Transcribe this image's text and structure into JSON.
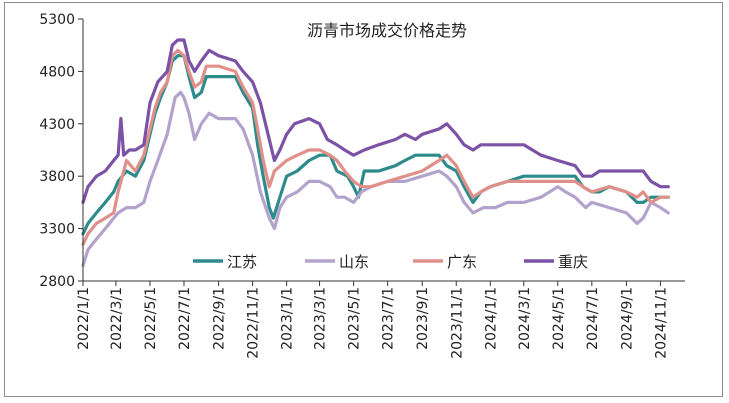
{
  "chart_data": {
    "type": "line",
    "title": "沥青市场成交价格走势",
    "xlabel": "",
    "ylabel": "",
    "ylim": [
      2800,
      5300
    ],
    "yticks": [
      2800,
      3300,
      3800,
      4300,
      4800,
      5300
    ],
    "ytick_labels": [
      "2800",
      "3300",
      "3800",
      "4300",
      "4800",
      "5300"
    ],
    "xlim": [
      "2022-01-01",
      "2024-12-15"
    ],
    "xticks": [
      "2022-01-01",
      "2022-03-01",
      "2022-05-01",
      "2022-07-01",
      "2022-09-01",
      "2022-11-01",
      "2023-01-01",
      "2023-03-01",
      "2023-05-01",
      "2023-07-01",
      "2023-09-01",
      "2023-11-01",
      "2024-01-01",
      "2024-03-01",
      "2024-05-01",
      "2024-07-01",
      "2024-09-01",
      "2024-11-01"
    ],
    "xtick_labels": [
      "2022/1/1",
      "2022/3/1",
      "2022/5/1",
      "2022/7/1",
      "2022/9/1",
      "2022/11/1",
      "2023/1/1",
      "2023/3/1",
      "2023/5/1",
      "2023/7/1",
      "2023/9/1",
      "2023/11/1",
      "2024/1/1",
      "2024/3/1",
      "2024/5/1",
      "2024/7/1",
      "2024/9/1",
      "2024/11/1"
    ],
    "grid": false,
    "legend_position": "bottom-inside",
    "series": [
      {
        "name": "江苏",
        "color": "#2e8b8b",
        "points": [
          [
            "2022-01-01",
            3250
          ],
          [
            "2022-01-10",
            3350
          ],
          [
            "2022-01-25",
            3450
          ],
          [
            "2022-02-10",
            3550
          ],
          [
            "2022-02-25",
            3650
          ],
          [
            "2022-03-05",
            3750
          ],
          [
            "2022-03-20",
            3850
          ],
          [
            "2022-04-05",
            3800
          ],
          [
            "2022-04-20",
            3950
          ],
          [
            "2022-05-01",
            4200
          ],
          [
            "2022-05-10",
            4400
          ],
          [
            "2022-05-20",
            4550
          ],
          [
            "2022-06-01",
            4700
          ],
          [
            "2022-06-10",
            4900
          ],
          [
            "2022-06-20",
            4950
          ],
          [
            "2022-07-01",
            4950
          ],
          [
            "2022-07-10",
            4750
          ],
          [
            "2022-07-20",
            4550
          ],
          [
            "2022-08-01",
            4600
          ],
          [
            "2022-08-10",
            4750
          ],
          [
            "2022-09-01",
            4750
          ],
          [
            "2022-10-01",
            4750
          ],
          [
            "2022-10-15",
            4600
          ],
          [
            "2022-11-01",
            4450
          ],
          [
            "2022-11-10",
            4100
          ],
          [
            "2022-11-20",
            3800
          ],
          [
            "2022-12-01",
            3500
          ],
          [
            "2022-12-08",
            3400
          ],
          [
            "2022-12-20",
            3600
          ],
          [
            "2023-01-01",
            3800
          ],
          [
            "2023-01-20",
            3850
          ],
          [
            "2023-02-10",
            3950
          ],
          [
            "2023-03-01",
            4000
          ],
          [
            "2023-03-20",
            4000
          ],
          [
            "2023-04-01",
            3850
          ],
          [
            "2023-04-20",
            3800
          ],
          [
            "2023-05-01",
            3700
          ],
          [
            "2023-05-10",
            3600
          ],
          [
            "2023-05-20",
            3850
          ],
          [
            "2023-06-15",
            3850
          ],
          [
            "2023-07-15",
            3900
          ],
          [
            "2023-08-01",
            3950
          ],
          [
            "2023-08-20",
            4000
          ],
          [
            "2023-10-01",
            4000
          ],
          [
            "2023-10-15",
            3900
          ],
          [
            "2023-11-01",
            3850
          ],
          [
            "2023-11-15",
            3700
          ],
          [
            "2023-12-01",
            3550
          ],
          [
            "2023-12-15",
            3650
          ],
          [
            "2024-01-01",
            3700
          ],
          [
            "2024-02-01",
            3750
          ],
          [
            "2024-03-01",
            3800
          ],
          [
            "2024-05-01",
            3800
          ],
          [
            "2024-06-01",
            3800
          ],
          [
            "2024-06-15",
            3700
          ],
          [
            "2024-07-01",
            3650
          ],
          [
            "2024-07-15",
            3650
          ],
          [
            "2024-08-01",
            3700
          ],
          [
            "2024-09-01",
            3650
          ],
          [
            "2024-09-20",
            3550
          ],
          [
            "2024-10-01",
            3550
          ],
          [
            "2024-10-15",
            3600
          ],
          [
            "2024-11-01",
            3600
          ],
          [
            "2024-11-15",
            3600
          ]
        ]
      },
      {
        "name": "山东",
        "color": "#b3a3cc",
        "points": [
          [
            "2022-01-01",
            2950
          ],
          [
            "2022-01-10",
            3100
          ],
          [
            "2022-01-25",
            3200
          ],
          [
            "2022-02-10",
            3300
          ],
          [
            "2022-02-25",
            3400
          ],
          [
            "2022-03-05",
            3450
          ],
          [
            "2022-03-20",
            3500
          ],
          [
            "2022-04-05",
            3500
          ],
          [
            "2022-04-20",
            3550
          ],
          [
            "2022-05-01",
            3750
          ],
          [
            "2022-05-15",
            3950
          ],
          [
            "2022-06-01",
            4200
          ],
          [
            "2022-06-15",
            4550
          ],
          [
            "2022-06-25",
            4600
          ],
          [
            "2022-07-01",
            4550
          ],
          [
            "2022-07-10",
            4400
          ],
          [
            "2022-07-20",
            4150
          ],
          [
            "2022-08-01",
            4300
          ],
          [
            "2022-08-15",
            4400
          ],
          [
            "2022-09-01",
            4350
          ],
          [
            "2022-10-01",
            4350
          ],
          [
            "2022-10-15",
            4250
          ],
          [
            "2022-11-01",
            4000
          ],
          [
            "2022-11-15",
            3650
          ],
          [
            "2022-12-01",
            3400
          ],
          [
            "2022-12-10",
            3300
          ],
          [
            "2022-12-20",
            3500
          ],
          [
            "2023-01-01",
            3600
          ],
          [
            "2023-01-20",
            3650
          ],
          [
            "2023-02-10",
            3750
          ],
          [
            "2023-03-01",
            3750
          ],
          [
            "2023-03-20",
            3700
          ],
          [
            "2023-04-01",
            3600
          ],
          [
            "2023-04-15",
            3600
          ],
          [
            "2023-05-01",
            3550
          ],
          [
            "2023-05-15",
            3650
          ],
          [
            "2023-06-01",
            3700
          ],
          [
            "2023-07-01",
            3750
          ],
          [
            "2023-08-01",
            3750
          ],
          [
            "2023-09-01",
            3800
          ],
          [
            "2023-10-01",
            3850
          ],
          [
            "2023-10-15",
            3800
          ],
          [
            "2023-11-01",
            3700
          ],
          [
            "2023-11-15",
            3550
          ],
          [
            "2023-12-01",
            3450
          ],
          [
            "2023-12-20",
            3500
          ],
          [
            "2024-01-10",
            3500
          ],
          [
            "2024-02-01",
            3550
          ],
          [
            "2024-03-01",
            3550
          ],
          [
            "2024-04-01",
            3600
          ],
          [
            "2024-05-01",
            3700
          ],
          [
            "2024-05-15",
            3650
          ],
          [
            "2024-06-01",
            3600
          ],
          [
            "2024-06-20",
            3500
          ],
          [
            "2024-07-01",
            3550
          ],
          [
            "2024-08-01",
            3500
          ],
          [
            "2024-09-01",
            3450
          ],
          [
            "2024-09-20",
            3350
          ],
          [
            "2024-10-01",
            3400
          ],
          [
            "2024-10-15",
            3550
          ],
          [
            "2024-11-01",
            3500
          ],
          [
            "2024-11-15",
            3450
          ]
        ]
      },
      {
        "name": "广东",
        "color": "#e0908a",
        "points": [
          [
            "2022-01-01",
            3150
          ],
          [
            "2022-01-10",
            3250
          ],
          [
            "2022-01-25",
            3350
          ],
          [
            "2022-02-10",
            3400
          ],
          [
            "2022-02-25",
            3450
          ],
          [
            "2022-03-05",
            3650
          ],
          [
            "2022-03-20",
            3950
          ],
          [
            "2022-04-05",
            3850
          ],
          [
            "2022-04-20",
            4000
          ],
          [
            "2022-05-01",
            4250
          ],
          [
            "2022-05-10",
            4450
          ],
          [
            "2022-05-20",
            4600
          ],
          [
            "2022-06-01",
            4700
          ],
          [
            "2022-06-10",
            4950
          ],
          [
            "2022-06-20",
            5000
          ],
          [
            "2022-07-01",
            4950
          ],
          [
            "2022-07-10",
            4800
          ],
          [
            "2022-07-20",
            4650
          ],
          [
            "2022-08-01",
            4700
          ],
          [
            "2022-08-10",
            4850
          ],
          [
            "2022-09-01",
            4850
          ],
          [
            "2022-10-01",
            4800
          ],
          [
            "2022-10-15",
            4650
          ],
          [
            "2022-11-01",
            4500
          ],
          [
            "2022-11-10",
            4250
          ],
          [
            "2022-11-20",
            3950
          ],
          [
            "2022-12-01",
            3700
          ],
          [
            "2022-12-10",
            3850
          ],
          [
            "2023-01-01",
            3950
          ],
          [
            "2023-01-20",
            4000
          ],
          [
            "2023-02-10",
            4050
          ],
          [
            "2023-03-01",
            4050
          ],
          [
            "2023-03-20",
            4000
          ],
          [
            "2023-04-01",
            3950
          ],
          [
            "2023-04-15",
            3850
          ],
          [
            "2023-05-01",
            3750
          ],
          [
            "2023-05-15",
            3700
          ],
          [
            "2023-06-01",
            3700
          ],
          [
            "2023-07-01",
            3750
          ],
          [
            "2023-08-01",
            3800
          ],
          [
            "2023-09-01",
            3850
          ],
          [
            "2023-10-01",
            3950
          ],
          [
            "2023-10-15",
            4000
          ],
          [
            "2023-11-01",
            3900
          ],
          [
            "2023-11-15",
            3750
          ],
          [
            "2023-12-01",
            3600
          ],
          [
            "2023-12-15",
            3650
          ],
          [
            "2024-01-01",
            3700
          ],
          [
            "2024-02-01",
            3750
          ],
          [
            "2024-03-01",
            3750
          ],
          [
            "2024-04-01",
            3750
          ],
          [
            "2024-05-01",
            3750
          ],
          [
            "2024-06-01",
            3750
          ],
          [
            "2024-06-15",
            3700
          ],
          [
            "2024-07-01",
            3650
          ],
          [
            "2024-08-01",
            3700
          ],
          [
            "2024-09-01",
            3650
          ],
          [
            "2024-09-20",
            3600
          ],
          [
            "2024-10-01",
            3650
          ],
          [
            "2024-10-15",
            3550
          ],
          [
            "2024-11-01",
            3600
          ],
          [
            "2024-11-15",
            3600
          ]
        ]
      },
      {
        "name": "重庆",
        "color": "#7b52a6",
        "points": [
          [
            "2022-01-01",
            3550
          ],
          [
            "2022-01-10",
            3700
          ],
          [
            "2022-01-25",
            3800
          ],
          [
            "2022-02-10",
            3850
          ],
          [
            "2022-02-25",
            3950
          ],
          [
            "2022-03-05",
            4000
          ],
          [
            "2022-03-10",
            4350
          ],
          [
            "2022-03-15",
            4000
          ],
          [
            "2022-03-25",
            4050
          ],
          [
            "2022-04-05",
            4050
          ],
          [
            "2022-04-20",
            4100
          ],
          [
            "2022-05-01",
            4500
          ],
          [
            "2022-05-15",
            4700
          ],
          [
            "2022-06-01",
            4800
          ],
          [
            "2022-06-10",
            5050
          ],
          [
            "2022-06-20",
            5100
          ],
          [
            "2022-07-01",
            5100
          ],
          [
            "2022-07-10",
            4900
          ],
          [
            "2022-07-20",
            4800
          ],
          [
            "2022-08-01",
            4900
          ],
          [
            "2022-08-15",
            5000
          ],
          [
            "2022-09-01",
            4950
          ],
          [
            "2022-10-01",
            4900
          ],
          [
            "2022-10-15",
            4800
          ],
          [
            "2022-11-01",
            4700
          ],
          [
            "2022-11-15",
            4500
          ],
          [
            "2022-12-01",
            4150
          ],
          [
            "2022-12-10",
            3950
          ],
          [
            "2022-12-20",
            4050
          ],
          [
            "2023-01-01",
            4200
          ],
          [
            "2023-01-15",
            4300
          ],
          [
            "2023-02-10",
            4350
          ],
          [
            "2023-03-01",
            4300
          ],
          [
            "2023-03-15",
            4150
          ],
          [
            "2023-04-01",
            4100
          ],
          [
            "2023-04-15",
            4050
          ],
          [
            "2023-05-01",
            4000
          ],
          [
            "2023-05-20",
            4050
          ],
          [
            "2023-06-15",
            4100
          ],
          [
            "2023-07-15",
            4150
          ],
          [
            "2023-08-01",
            4200
          ],
          [
            "2023-08-20",
            4150
          ],
          [
            "2023-09-01",
            4200
          ],
          [
            "2023-10-01",
            4250
          ],
          [
            "2023-10-15",
            4300
          ],
          [
            "2023-11-01",
            4200
          ],
          [
            "2023-11-15",
            4100
          ],
          [
            "2023-12-01",
            4050
          ],
          [
            "2023-12-15",
            4100
          ],
          [
            "2024-01-01",
            4100
          ],
          [
            "2024-02-01",
            4100
          ],
          [
            "2024-03-01",
            4100
          ],
          [
            "2024-04-01",
            4000
          ],
          [
            "2024-05-01",
            3950
          ],
          [
            "2024-06-01",
            3900
          ],
          [
            "2024-06-15",
            3800
          ],
          [
            "2024-07-01",
            3800
          ],
          [
            "2024-07-15",
            3850
          ],
          [
            "2024-08-01",
            3850
          ],
          [
            "2024-09-01",
            3850
          ],
          [
            "2024-10-01",
            3850
          ],
          [
            "2024-10-15",
            3750
          ],
          [
            "2024-11-01",
            3700
          ],
          [
            "2024-11-15",
            3700
          ]
        ]
      }
    ]
  }
}
